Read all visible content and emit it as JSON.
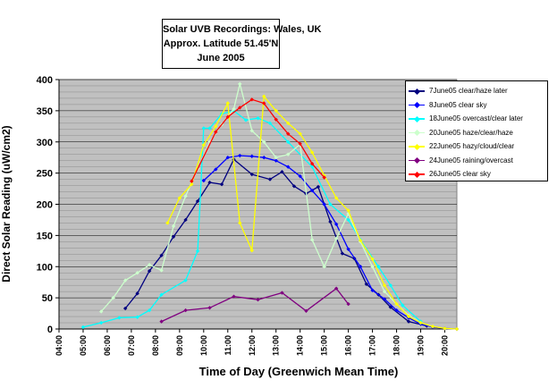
{
  "chart_data": {
    "type": "line",
    "title_lines": [
      "Solar UVB Recordings: Wales, UK",
      "Approx. Latitude  51.45'N",
      "June 2005"
    ],
    "xlabel": "Time of Day (Greenwich Mean Time)",
    "ylabel": "Direct Solar Reading (uW/cm2)",
    "ylim": [
      0,
      400
    ],
    "yticks": [
      "0",
      "50",
      "100",
      "150",
      "200",
      "250",
      "300",
      "350",
      "400"
    ],
    "xlim": [
      4,
      20.5
    ],
    "xticks": [
      "04:00",
      "05:00",
      "06:00",
      "07:00",
      "08:00",
      "09:00",
      "10:00",
      "11:00",
      "12:00",
      "13:00",
      "14:00",
      "15:00",
      "16:00",
      "17:00",
      "18:00",
      "19:00",
      "20:00"
    ],
    "grid": true,
    "legend_position": "right",
    "plot_background": "#c0c0c0",
    "series": [
      {
        "name": "7June05 clear/haze later",
        "color": "#000080",
        "x": [
          6.75,
          7.25,
          7.75,
          8.25,
          8.75,
          9.25,
          9.75,
          10.25,
          10.75,
          11.25,
          12,
          12.75,
          13.25,
          13.75,
          14.25,
          14.75,
          15.25,
          15.75,
          16.25,
          16.75,
          17.25,
          17.75,
          18.5,
          19.25
        ],
        "y": [
          33,
          57,
          93,
          118,
          148,
          175,
          205,
          235,
          232,
          272,
          248,
          240,
          252,
          229,
          217,
          228,
          172,
          121,
          113,
          72,
          55,
          35,
          12,
          5
        ]
      },
      {
        "name": "8June05 clear sky",
        "color": "#0000ff",
        "x": [
          10,
          10.5,
          11,
          11.5,
          12,
          12.5,
          13,
          13.5,
          14,
          14.5,
          15,
          15.5,
          16,
          16.5,
          17,
          17.5,
          18,
          18.5,
          19,
          19.5,
          20,
          20.5
        ],
        "y": [
          238,
          256,
          275,
          278,
          277,
          275,
          270,
          260,
          245,
          222,
          200,
          168,
          128,
          100,
          62,
          48,
          30,
          18,
          8,
          3,
          1,
          0
        ]
      },
      {
        "name": "18June05 overcast/clear later",
        "color": "#00ffff",
        "x": [
          5,
          5.75,
          6.5,
          7.25,
          7.75,
          8.25,
          9.25,
          9.75,
          10.0,
          10.25,
          10.75,
          11.25,
          11.75,
          12.25,
          12.75,
          13.5,
          14.5,
          15.25,
          16.0,
          16.5,
          17.25,
          17.75,
          18.25,
          19.0
        ],
        "y": [
          3,
          10,
          18,
          19,
          30,
          55,
          78,
          125,
          322,
          322,
          345,
          350,
          335,
          338,
          330,
          300,
          260,
          200,
          175,
          143,
          100,
          70,
          38,
          12
        ]
      },
      {
        "name": "20June05 haze/clear/haze",
        "color": "#ccffcc",
        "x": [
          5.75,
          6.25,
          6.75,
          7.25,
          7.75,
          8.25,
          8.75,
          9.25,
          9.75,
          10.25,
          10.75,
          11.25,
          11.5,
          12,
          12.5,
          13.0,
          13.5,
          14,
          14.5,
          15,
          15.5,
          16,
          16.5,
          17,
          17.5,
          18,
          18.5,
          19,
          19.5
        ],
        "y": [
          28,
          50,
          78,
          90,
          103,
          94,
          165,
          213,
          257,
          300,
          328,
          353,
          393,
          318,
          300,
          275,
          280,
          296,
          143,
          100,
          145,
          185,
          140,
          100,
          60,
          40,
          22,
          10,
          4
        ]
      },
      {
        "name": "22June05 hazy/cloud/clear",
        "color": "#ffff00",
        "x": [
          8.5,
          9.0,
          9.5,
          10,
          10.5,
          11,
          11.5,
          12,
          12.5,
          13,
          13.5,
          14,
          14.5,
          15,
          15.5,
          16,
          16.5,
          17,
          17.5,
          18,
          18.5,
          19,
          19.5,
          20,
          20.5
        ],
        "y": [
          170,
          210,
          232,
          295,
          325,
          362,
          170,
          126,
          373,
          350,
          330,
          313,
          283,
          246,
          210,
          190,
          142,
          112,
          70,
          40,
          20,
          10,
          4,
          1,
          0
        ]
      },
      {
        "name": "24June05 raining/overcast",
        "color": "#800080",
        "x": [
          8.25,
          9.25,
          10.25,
          11.25,
          12.25,
          13.25,
          14.25,
          15.5,
          16.0
        ],
        "y": [
          12,
          30,
          34,
          52,
          47,
          58,
          29,
          65,
          40
        ]
      },
      {
        "name": "26June05 clear sky",
        "color": "#ff0000",
        "x": [
          9.5,
          10.5,
          11.0,
          11.5,
          12,
          12.5,
          13,
          13.5,
          14,
          14.5,
          15
        ],
        "y": [
          237,
          316,
          340,
          355,
          368,
          362,
          336,
          313,
          297,
          265,
          243
        ]
      }
    ]
  }
}
